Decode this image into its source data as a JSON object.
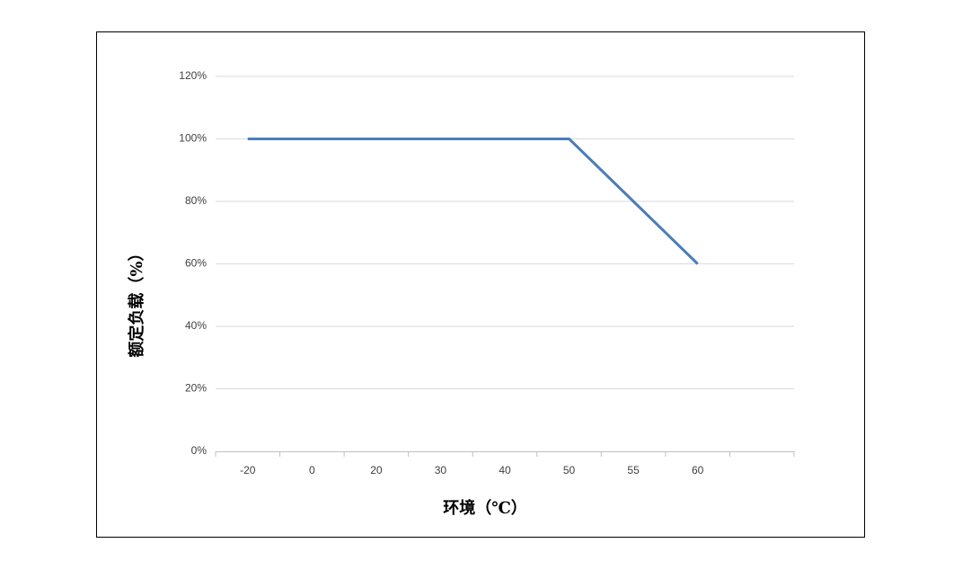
{
  "chart_data": {
    "type": "line",
    "x_label": "环境（℃）",
    "y_label": "额定负载（%）",
    "categories": [
      "-20",
      "0",
      "20",
      "30",
      "40",
      "50",
      "55",
      "60",
      null
    ],
    "series": [
      {
        "color": "#4a7ebb",
        "values": [
          100,
          100,
          100,
          100,
          100,
          100,
          80,
          60,
          null
        ]
      }
    ],
    "ylim": [
      0,
      120
    ],
    "yticks": [
      {
        "value": 0,
        "label": "0%"
      },
      {
        "value": 20,
        "label": "20%"
      },
      {
        "value": 40,
        "label": "40%"
      },
      {
        "value": 60,
        "label": "60%"
      },
      {
        "value": 80,
        "label": "80%"
      },
      {
        "value": 100,
        "label": "100%"
      },
      {
        "value": 120,
        "label": "120%"
      }
    ],
    "grid": true
  }
}
